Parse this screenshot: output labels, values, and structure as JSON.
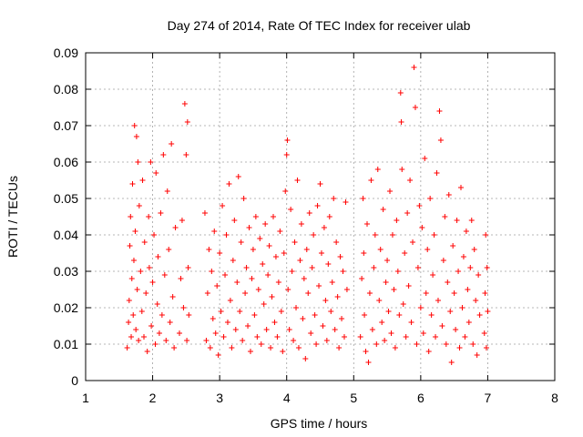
{
  "chart_data": {
    "type": "scatter",
    "title": "Day 274 of 2014, Rate Of TEC Index for receiver ulab",
    "xlabel": "GPS time / hours",
    "ylabel": "ROTI / TECUs",
    "xlim": [
      1,
      8
    ],
    "ylim": [
      0,
      0.09
    ],
    "xticks": [
      "1",
      "2",
      "3",
      "4",
      "5",
      "6",
      "7",
      "8"
    ],
    "yticks": [
      "0",
      "0.01",
      "0.02",
      "0.03",
      "0.04",
      "0.05",
      "0.06",
      "0.07",
      "0.08",
      "0.09"
    ],
    "marker": "+",
    "grid": true,
    "series": [
      {
        "name": "ROTI",
        "color": "#ff0000",
        "points": [
          [
            1.62,
            0.009
          ],
          [
            1.64,
            0.016
          ],
          [
            1.65,
            0.022
          ],
          [
            1.66,
            0.037
          ],
          [
            1.67,
            0.045
          ],
          [
            1.68,
            0.012
          ],
          [
            1.69,
            0.028
          ],
          [
            1.7,
            0.054
          ],
          [
            1.71,
            0.018
          ],
          [
            1.72,
            0.033
          ],
          [
            1.73,
            0.07
          ],
          [
            1.74,
            0.041
          ],
          [
            1.75,
            0.014
          ],
          [
            1.76,
            0.067
          ],
          [
            1.77,
            0.025
          ],
          [
            1.78,
            0.06
          ],
          [
            1.79,
            0.011
          ],
          [
            1.8,
            0.048
          ],
          [
            1.82,
            0.03
          ],
          [
            1.84,
            0.019
          ],
          [
            1.85,
            0.055
          ],
          [
            1.87,
            0.012
          ],
          [
            1.88,
            0.038
          ],
          [
            1.9,
            0.024
          ],
          [
            1.92,
            0.008
          ],
          [
            1.94,
            0.045
          ],
          [
            1.95,
            0.031
          ],
          [
            1.97,
            0.06
          ],
          [
            1.98,
            0.015
          ],
          [
            2.0,
            0.027
          ],
          [
            2.02,
            0.04
          ],
          [
            2.04,
            0.01
          ],
          [
            2.05,
            0.057
          ],
          [
            2.07,
            0.021
          ],
          [
            2.08,
            0.034
          ],
          [
            2.1,
            0.013
          ],
          [
            2.12,
            0.046
          ],
          [
            2.14,
            0.018
          ],
          [
            2.16,
            0.062
          ],
          [
            2.18,
            0.029
          ],
          [
            2.2,
            0.011
          ],
          [
            2.22,
            0.052
          ],
          [
            2.24,
            0.036
          ],
          [
            2.26,
            0.016
          ],
          [
            2.28,
            0.065
          ],
          [
            2.3,
            0.023
          ],
          [
            2.32,
            0.009
          ],
          [
            2.34,
            0.042
          ],
          [
            2.4,
            0.013
          ],
          [
            2.42,
            0.028
          ],
          [
            2.44,
            0.044
          ],
          [
            2.46,
            0.02
          ],
          [
            2.48,
            0.076
          ],
          [
            2.5,
            0.062
          ],
          [
            2.51,
            0.011
          ],
          [
            2.52,
            0.071
          ],
          [
            2.53,
            0.031
          ],
          [
            2.54,
            0.018
          ],
          [
            2.78,
            0.046
          ],
          [
            2.8,
            0.011
          ],
          [
            2.82,
            0.024
          ],
          [
            2.84,
            0.036
          ],
          [
            2.86,
            0.009
          ],
          [
            2.88,
            0.03
          ],
          [
            2.9,
            0.017
          ],
          [
            2.92,
            0.041
          ],
          [
            2.94,
            0.013
          ],
          [
            2.96,
            0.026
          ],
          [
            2.98,
            0.007
          ],
          [
            3.0,
            0.035
          ],
          [
            3.02,
            0.019
          ],
          [
            3.04,
            0.048
          ],
          [
            3.06,
            0.012
          ],
          [
            3.08,
            0.029
          ],
          [
            3.1,
            0.04
          ],
          [
            3.12,
            0.016
          ],
          [
            3.14,
            0.054
          ],
          [
            3.16,
            0.022
          ],
          [
            3.18,
            0.009
          ],
          [
            3.2,
            0.033
          ],
          [
            3.22,
            0.044
          ],
          [
            3.24,
            0.014
          ],
          [
            3.26,
            0.027
          ],
          [
            3.28,
            0.056
          ],
          [
            3.3,
            0.019
          ],
          [
            3.32,
            0.038
          ],
          [
            3.34,
            0.011
          ],
          [
            3.36,
            0.05
          ],
          [
            3.38,
            0.024
          ],
          [
            3.4,
            0.031
          ],
          [
            3.42,
            0.015
          ],
          [
            3.44,
            0.042
          ],
          [
            3.46,
            0.008
          ],
          [
            3.48,
            0.028
          ],
          [
            3.5,
            0.036
          ],
          [
            3.52,
            0.018
          ],
          [
            3.54,
            0.045
          ],
          [
            3.56,
            0.012
          ],
          [
            3.58,
            0.025
          ],
          [
            3.6,
            0.039
          ],
          [
            3.62,
            0.01
          ],
          [
            3.64,
            0.032
          ],
          [
            3.66,
            0.021
          ],
          [
            3.68,
            0.043
          ],
          [
            3.7,
            0.014
          ],
          [
            3.72,
            0.029
          ],
          [
            3.74,
            0.037
          ],
          [
            3.76,
            0.009
          ],
          [
            3.78,
            0.023
          ],
          [
            3.8,
            0.045
          ],
          [
            3.82,
            0.016
          ],
          [
            3.84,
            0.034
          ],
          [
            3.86,
            0.012
          ],
          [
            3.88,
            0.027
          ],
          [
            3.9,
            0.041
          ],
          [
            3.92,
            0.019
          ],
          [
            3.94,
            0.008
          ],
          [
            3.96,
            0.035
          ],
          [
            3.98,
            0.052
          ],
          [
            4.0,
            0.062
          ],
          [
            4.01,
            0.066
          ],
          [
            4.02,
            0.025
          ],
          [
            4.04,
            0.014
          ],
          [
            4.06,
            0.047
          ],
          [
            4.08,
            0.03
          ],
          [
            4.1,
            0.011
          ],
          [
            4.12,
            0.038
          ],
          [
            4.14,
            0.02
          ],
          [
            4.16,
            0.055
          ],
          [
            4.18,
            0.009
          ],
          [
            4.2,
            0.033
          ],
          [
            4.22,
            0.043
          ],
          [
            4.24,
            0.017
          ],
          [
            4.26,
            0.028
          ],
          [
            4.28,
            0.006
          ],
          [
            4.3,
            0.036
          ],
          [
            4.32,
            0.024
          ],
          [
            4.34,
            0.046
          ],
          [
            4.36,
            0.013
          ],
          [
            4.38,
            0.031
          ],
          [
            4.4,
            0.04
          ],
          [
            4.42,
            0.018
          ],
          [
            4.44,
            0.01
          ],
          [
            4.46,
            0.048
          ],
          [
            4.48,
            0.026
          ],
          [
            4.5,
            0.054
          ],
          [
            4.52,
            0.035
          ],
          [
            4.54,
            0.015
          ],
          [
            4.56,
            0.042
          ],
          [
            4.58,
            0.022
          ],
          [
            4.6,
            0.011
          ],
          [
            4.62,
            0.032
          ],
          [
            4.64,
            0.045
          ],
          [
            4.66,
            0.019
          ],
          [
            4.68,
            0.027
          ],
          [
            4.7,
            0.05
          ],
          [
            4.72,
            0.014
          ],
          [
            4.74,
            0.038
          ],
          [
            4.76,
            0.023
          ],
          [
            4.78,
            0.009
          ],
          [
            4.8,
            0.034
          ],
          [
            4.82,
            0.017
          ],
          [
            4.84,
            0.03
          ],
          [
            4.86,
            0.012
          ],
          [
            4.88,
            0.049
          ],
          [
            4.9,
            0.025
          ],
          [
            5.1,
            0.012
          ],
          [
            5.12,
            0.028
          ],
          [
            5.14,
            0.05
          ],
          [
            5.15,
            0.035
          ],
          [
            5.16,
            0.018
          ],
          [
            5.18,
            0.008
          ],
          [
            5.2,
            0.043
          ],
          [
            5.22,
            0.005
          ],
          [
            5.24,
            0.024
          ],
          [
            5.26,
            0.055
          ],
          [
            5.28,
            0.014
          ],
          [
            5.3,
            0.031
          ],
          [
            5.32,
            0.04
          ],
          [
            5.34,
            0.01
          ],
          [
            5.36,
            0.058
          ],
          [
            5.38,
            0.022
          ],
          [
            5.4,
            0.036
          ],
          [
            5.42,
            0.016
          ],
          [
            5.44,
            0.047
          ],
          [
            5.46,
            0.011
          ],
          [
            5.48,
            0.027
          ],
          [
            5.5,
            0.033
          ],
          [
            5.52,
            0.019
          ],
          [
            5.54,
            0.052
          ],
          [
            5.56,
            0.013
          ],
          [
            5.58,
            0.04
          ],
          [
            5.6,
            0.025
          ],
          [
            5.62,
            0.009
          ],
          [
            5.64,
            0.044
          ],
          [
            5.66,
            0.03
          ],
          [
            5.68,
            0.018
          ],
          [
            5.7,
            0.079
          ],
          [
            5.71,
            0.071
          ],
          [
            5.72,
            0.058
          ],
          [
            5.74,
            0.021
          ],
          [
            5.76,
            0.035
          ],
          [
            5.78,
            0.012
          ],
          [
            5.8,
            0.046
          ],
          [
            5.82,
            0.026
          ],
          [
            5.84,
            0.055
          ],
          [
            5.86,
            0.016
          ],
          [
            5.88,
            0.038
          ],
          [
            5.9,
            0.086
          ],
          [
            5.92,
            0.075
          ],
          [
            5.94,
            0.01
          ],
          [
            5.96,
            0.031
          ],
          [
            5.98,
            0.048
          ],
          [
            6.0,
            0.02
          ],
          [
            6.02,
            0.042
          ],
          [
            6.04,
            0.013
          ],
          [
            6.06,
            0.061
          ],
          [
            6.08,
            0.024
          ],
          [
            6.1,
            0.036
          ],
          [
            6.12,
            0.008
          ],
          [
            6.14,
            0.05
          ],
          [
            6.16,
            0.018
          ],
          [
            6.18,
            0.029
          ],
          [
            6.2,
            0.04
          ],
          [
            6.22,
            0.012
          ],
          [
            6.24,
            0.057
          ],
          [
            6.26,
            0.022
          ],
          [
            6.28,
            0.074
          ],
          [
            6.3,
            0.066
          ],
          [
            6.32,
            0.015
          ],
          [
            6.34,
            0.033
          ],
          [
            6.36,
            0.045
          ],
          [
            6.38,
            0.01
          ],
          [
            6.4,
            0.027
          ],
          [
            6.42,
            0.051
          ],
          [
            6.44,
            0.019
          ],
          [
            6.46,
            0.005
          ],
          [
            6.48,
            0.037
          ],
          [
            6.5,
            0.024
          ],
          [
            6.52,
            0.014
          ],
          [
            6.54,
            0.044
          ],
          [
            6.56,
            0.03
          ],
          [
            6.58,
            0.009
          ],
          [
            6.6,
            0.053
          ],
          [
            6.62,
            0.02
          ],
          [
            6.64,
            0.034
          ],
          [
            6.66,
            0.012
          ],
          [
            6.68,
            0.041
          ],
          [
            6.7,
            0.025
          ],
          [
            6.72,
            0.016
          ],
          [
            6.74,
            0.031
          ],
          [
            6.76,
            0.044
          ],
          [
            6.78,
            0.01
          ],
          [
            6.8,
            0.036
          ],
          [
            6.82,
            0.022
          ],
          [
            6.84,
            0.007
          ],
          [
            6.86,
            0.029
          ],
          [
            6.88,
            0.018
          ],
          [
            6.95,
            0.013
          ],
          [
            6.96,
            0.024
          ],
          [
            6.97,
            0.04
          ],
          [
            6.98,
            0.009
          ],
          [
            6.99,
            0.031
          ],
          [
            7.0,
            0.019
          ]
        ]
      }
    ]
  }
}
